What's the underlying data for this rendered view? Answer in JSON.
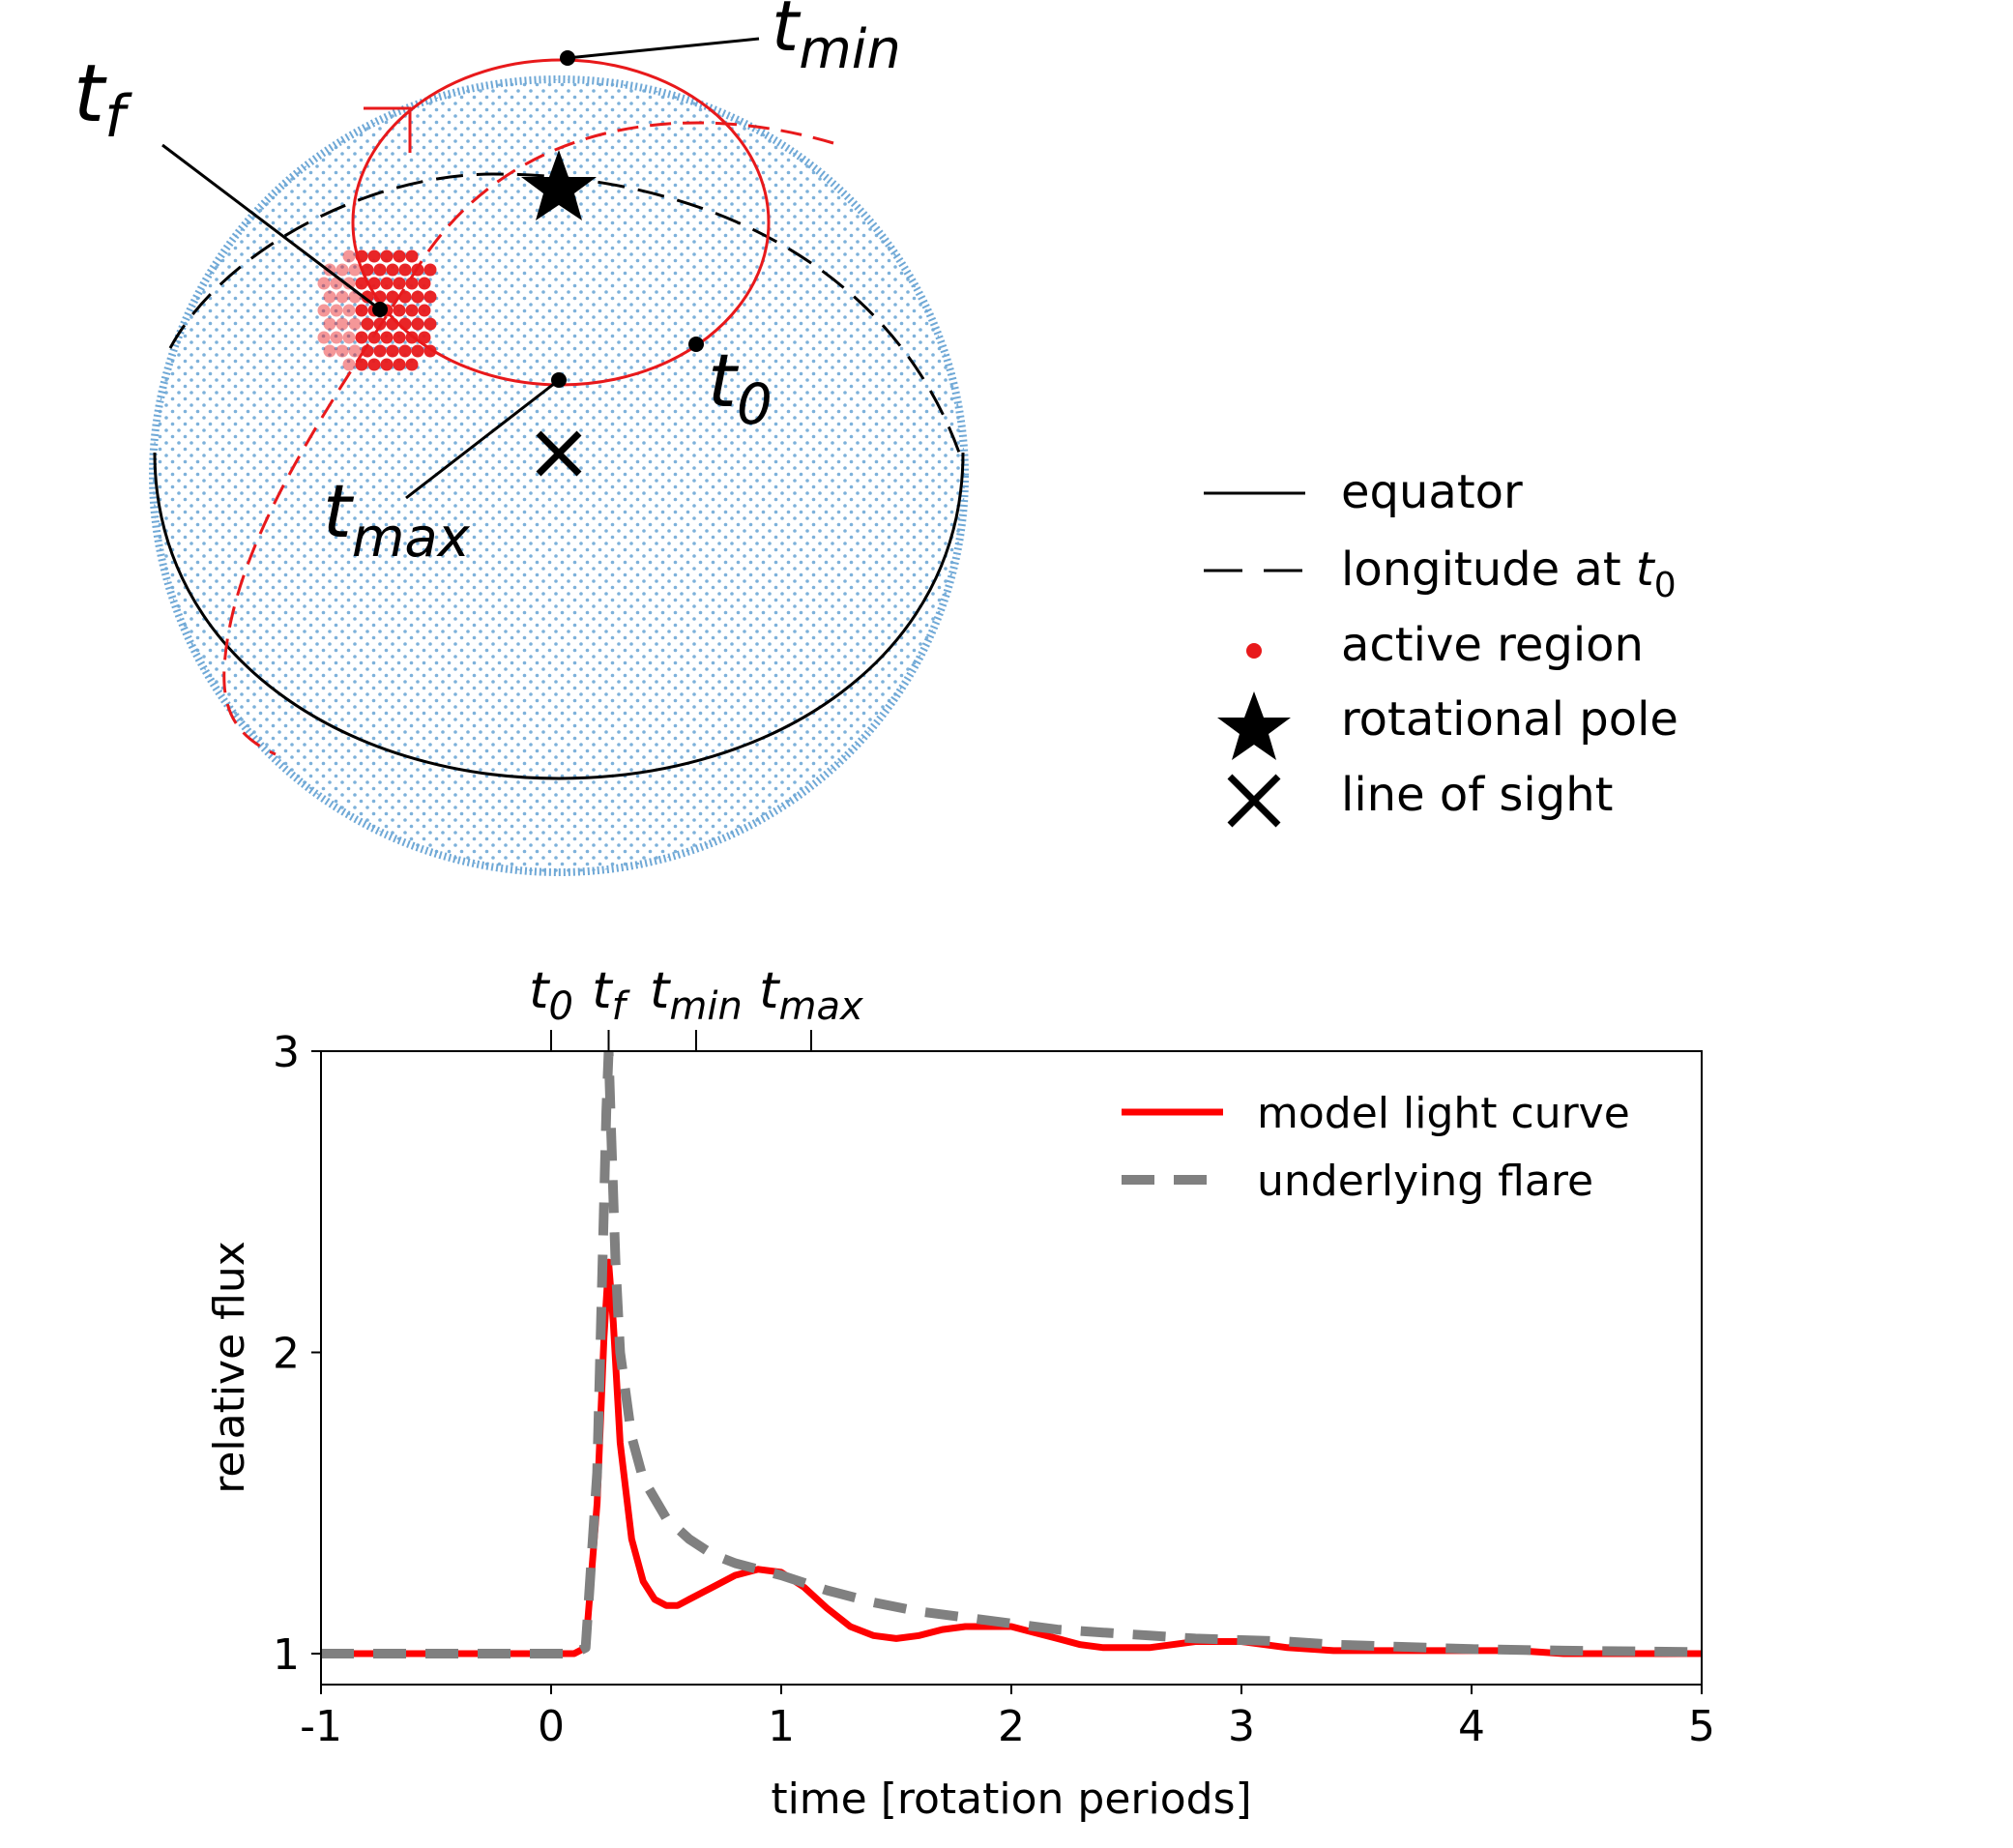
{
  "sphere_panel": {
    "labels": {
      "t_f": {
        "base": "t",
        "sub": "f"
      },
      "t_min": {
        "base": "t",
        "sub": "min"
      },
      "t_0": {
        "base": "t",
        "sub": "0"
      },
      "t_max": {
        "base": "t",
        "sub": "max"
      }
    },
    "legend": {
      "equator": "equator",
      "longitude": "longitude at ",
      "longitude_sym": "t",
      "longitude_sub": "0",
      "active_region": "active region",
      "rotational_pole": "rotational pole",
      "line_of_sight": "line of sight"
    },
    "colors": {
      "sphere_dots": "#6fa8d6",
      "active_region": "#e8191b",
      "trajectory": "#e8191b",
      "equator": "#000000"
    }
  },
  "chart_data": {
    "type": "line",
    "xlabel": "time [rotation periods]",
    "ylabel": "relative flux",
    "xlim": [
      -1,
      5
    ],
    "ylim": [
      0.9,
      3
    ],
    "xticks": [
      "-1",
      "0",
      "1",
      "2",
      "3",
      "4",
      "5"
    ],
    "yticks": [
      "1",
      "2",
      "3"
    ],
    "top_ticks": [
      {
        "x": 0.0,
        "base": "t",
        "sub": "0"
      },
      {
        "x": 0.25,
        "base": "t",
        "sub": "f"
      },
      {
        "x": 0.63,
        "base": "t",
        "sub": "min"
      },
      {
        "x": 1.13,
        "base": "t",
        "sub": "max"
      }
    ],
    "legend_position": "top-right",
    "series": [
      {
        "name": "model light curve",
        "color": "#ff0000",
        "style": "solid",
        "x": [
          -1,
          0,
          0.1,
          0.15,
          0.2,
          0.23,
          0.25,
          0.27,
          0.3,
          0.35,
          0.4,
          0.45,
          0.5,
          0.55,
          0.6,
          0.7,
          0.8,
          0.9,
          1.0,
          1.1,
          1.2,
          1.3,
          1.4,
          1.5,
          1.6,
          1.7,
          1.8,
          1.9,
          2.0,
          2.1,
          2.2,
          2.3,
          2.4,
          2.5,
          2.6,
          2.7,
          2.8,
          2.9,
          3.0,
          3.2,
          3.4,
          3.6,
          3.8,
          4.0,
          4.2,
          4.4,
          4.6,
          5.0
        ],
        "y": [
          1.0,
          1.0,
          1.0,
          1.02,
          1.5,
          2.05,
          2.3,
          2.1,
          1.7,
          1.38,
          1.24,
          1.18,
          1.16,
          1.16,
          1.18,
          1.22,
          1.26,
          1.28,
          1.27,
          1.22,
          1.15,
          1.09,
          1.06,
          1.05,
          1.06,
          1.08,
          1.09,
          1.09,
          1.09,
          1.07,
          1.05,
          1.03,
          1.02,
          1.02,
          1.02,
          1.03,
          1.04,
          1.04,
          1.04,
          1.02,
          1.01,
          1.01,
          1.01,
          1.01,
          1.01,
          1.0,
          1.0,
          1.0
        ]
      },
      {
        "name": "underlying flare",
        "color": "#808080",
        "style": "dashed",
        "x": [
          -1,
          0,
          0.1,
          0.15,
          0.2,
          0.22,
          0.24,
          0.25,
          0.26,
          0.28,
          0.3,
          0.35,
          0.4,
          0.5,
          0.6,
          0.7,
          0.8,
          0.9,
          1.0,
          1.2,
          1.4,
          1.6,
          1.8,
          2.0,
          2.2,
          2.4,
          2.6,
          2.8,
          3.0,
          3.2,
          3.4,
          3.6,
          3.8,
          4.0,
          4.4,
          5.0
        ],
        "y": [
          1.0,
          1.0,
          1.0,
          1.02,
          1.6,
          2.2,
          2.8,
          3.0,
          2.75,
          2.3,
          2.0,
          1.72,
          1.58,
          1.45,
          1.38,
          1.33,
          1.3,
          1.28,
          1.26,
          1.21,
          1.17,
          1.14,
          1.12,
          1.1,
          1.08,
          1.07,
          1.06,
          1.05,
          1.045,
          1.04,
          1.03,
          1.025,
          1.02,
          1.015,
          1.01,
          1.005
        ]
      }
    ]
  }
}
